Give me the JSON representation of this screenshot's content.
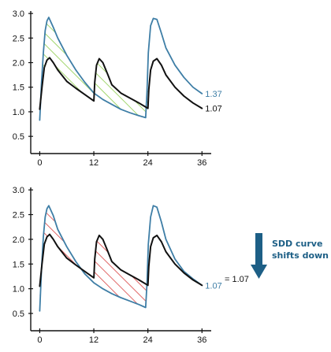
{
  "chart_data": [
    {
      "type": "line",
      "x_ticks": [
        "0",
        "12",
        "24",
        "36"
      ],
      "y_ticks": [
        "0.5",
        "1.0",
        "1.5",
        "2.0",
        "2.5",
        "3.0"
      ],
      "xlim": [
        -2,
        37
      ],
      "ylim": [
        0.15,
        3.05
      ],
      "series": [
        {
          "color": "#3e7ea6",
          "end_label": "1.37",
          "x": [
            0,
            0.4,
            0.8,
            1.2,
            1.6,
            2,
            3,
            4,
            6,
            8,
            10,
            12,
            14,
            16,
            18,
            20,
            22,
            23.5,
            23.8,
            24.1,
            24.6,
            25.2,
            26,
            27,
            28,
            30,
            32,
            34,
            36
          ],
          "y": [
            0.83,
            1.6,
            2.2,
            2.65,
            2.85,
            2.92,
            2.72,
            2.5,
            2.15,
            1.85,
            1.6,
            1.38,
            1.25,
            1.15,
            1.05,
            0.98,
            0.92,
            0.88,
            1.4,
            2.2,
            2.75,
            2.9,
            2.88,
            2.6,
            2.3,
            1.95,
            1.7,
            1.5,
            1.37
          ]
        },
        {
          "color": "#111111",
          "end_label": "1.07",
          "x": [
            0,
            0.5,
            1,
            1.6,
            2.2,
            3,
            4,
            6,
            8,
            10,
            12,
            12.2,
            12.6,
            13.2,
            14,
            15,
            16,
            18,
            20,
            22,
            24,
            24.2,
            24.6,
            25.2,
            26,
            27,
            28,
            30,
            32,
            34,
            36
          ],
          "y": [
            1.05,
            1.5,
            1.9,
            2.05,
            2.1,
            2.0,
            1.85,
            1.62,
            1.48,
            1.35,
            1.22,
            1.6,
            1.95,
            2.08,
            2.0,
            1.78,
            1.55,
            1.38,
            1.28,
            1.18,
            1.07,
            1.45,
            1.85,
            2.03,
            2.08,
            1.95,
            1.75,
            1.5,
            1.32,
            1.18,
            1.07
          ]
        }
      ],
      "hatch_color": "#8ccc4a"
    },
    {
      "type": "line",
      "x_ticks": [
        "0",
        "12",
        "24",
        "36"
      ],
      "y_ticks": [
        "0.5",
        "1.0",
        "1.5",
        "2.0",
        "2.5",
        "3.0"
      ],
      "xlim": [
        -2,
        37
      ],
      "ylim": [
        0.15,
        3.05
      ],
      "series": [
        {
          "color": "#3e7ea6",
          "end_label": "1.07",
          "x": [
            0,
            0.4,
            0.8,
            1.2,
            1.6,
            2,
            3,
            4,
            6,
            8,
            10,
            12,
            14,
            16,
            18,
            20,
            22,
            23.5,
            23.8,
            24.1,
            24.6,
            25.2,
            26,
            27,
            28,
            30,
            32,
            34,
            36
          ],
          "y": [
            0.55,
            1.4,
            2.05,
            2.45,
            2.62,
            2.68,
            2.48,
            2.2,
            1.85,
            1.55,
            1.3,
            1.12,
            1.0,
            0.9,
            0.82,
            0.75,
            0.68,
            0.62,
            1.1,
            1.9,
            2.45,
            2.68,
            2.65,
            2.35,
            2.0,
            1.6,
            1.35,
            1.2,
            1.07
          ]
        },
        {
          "color": "#111111",
          "end_label": "",
          "x": [
            0,
            0.5,
            1,
            1.6,
            2.2,
            3,
            4,
            6,
            8,
            10,
            12,
            12.2,
            12.6,
            13.2,
            14,
            15,
            16,
            18,
            20,
            22,
            24,
            24.2,
            24.6,
            25.2,
            26,
            27,
            28,
            30,
            32,
            34,
            36
          ],
          "y": [
            1.05,
            1.5,
            1.9,
            2.05,
            2.1,
            2.0,
            1.85,
            1.62,
            1.48,
            1.35,
            1.22,
            1.6,
            1.95,
            2.08,
            2.0,
            1.78,
            1.55,
            1.38,
            1.28,
            1.18,
            1.07,
            1.45,
            1.85,
            2.03,
            2.08,
            1.95,
            1.75,
            1.5,
            1.32,
            1.18,
            1.07
          ]
        }
      ],
      "hatch_color": "#d94040",
      "equals_label": "= 1.07"
    }
  ],
  "annotation": {
    "line1": "SDD curve",
    "line2": "shifts down",
    "arrow_color": "#1d5f86"
  }
}
